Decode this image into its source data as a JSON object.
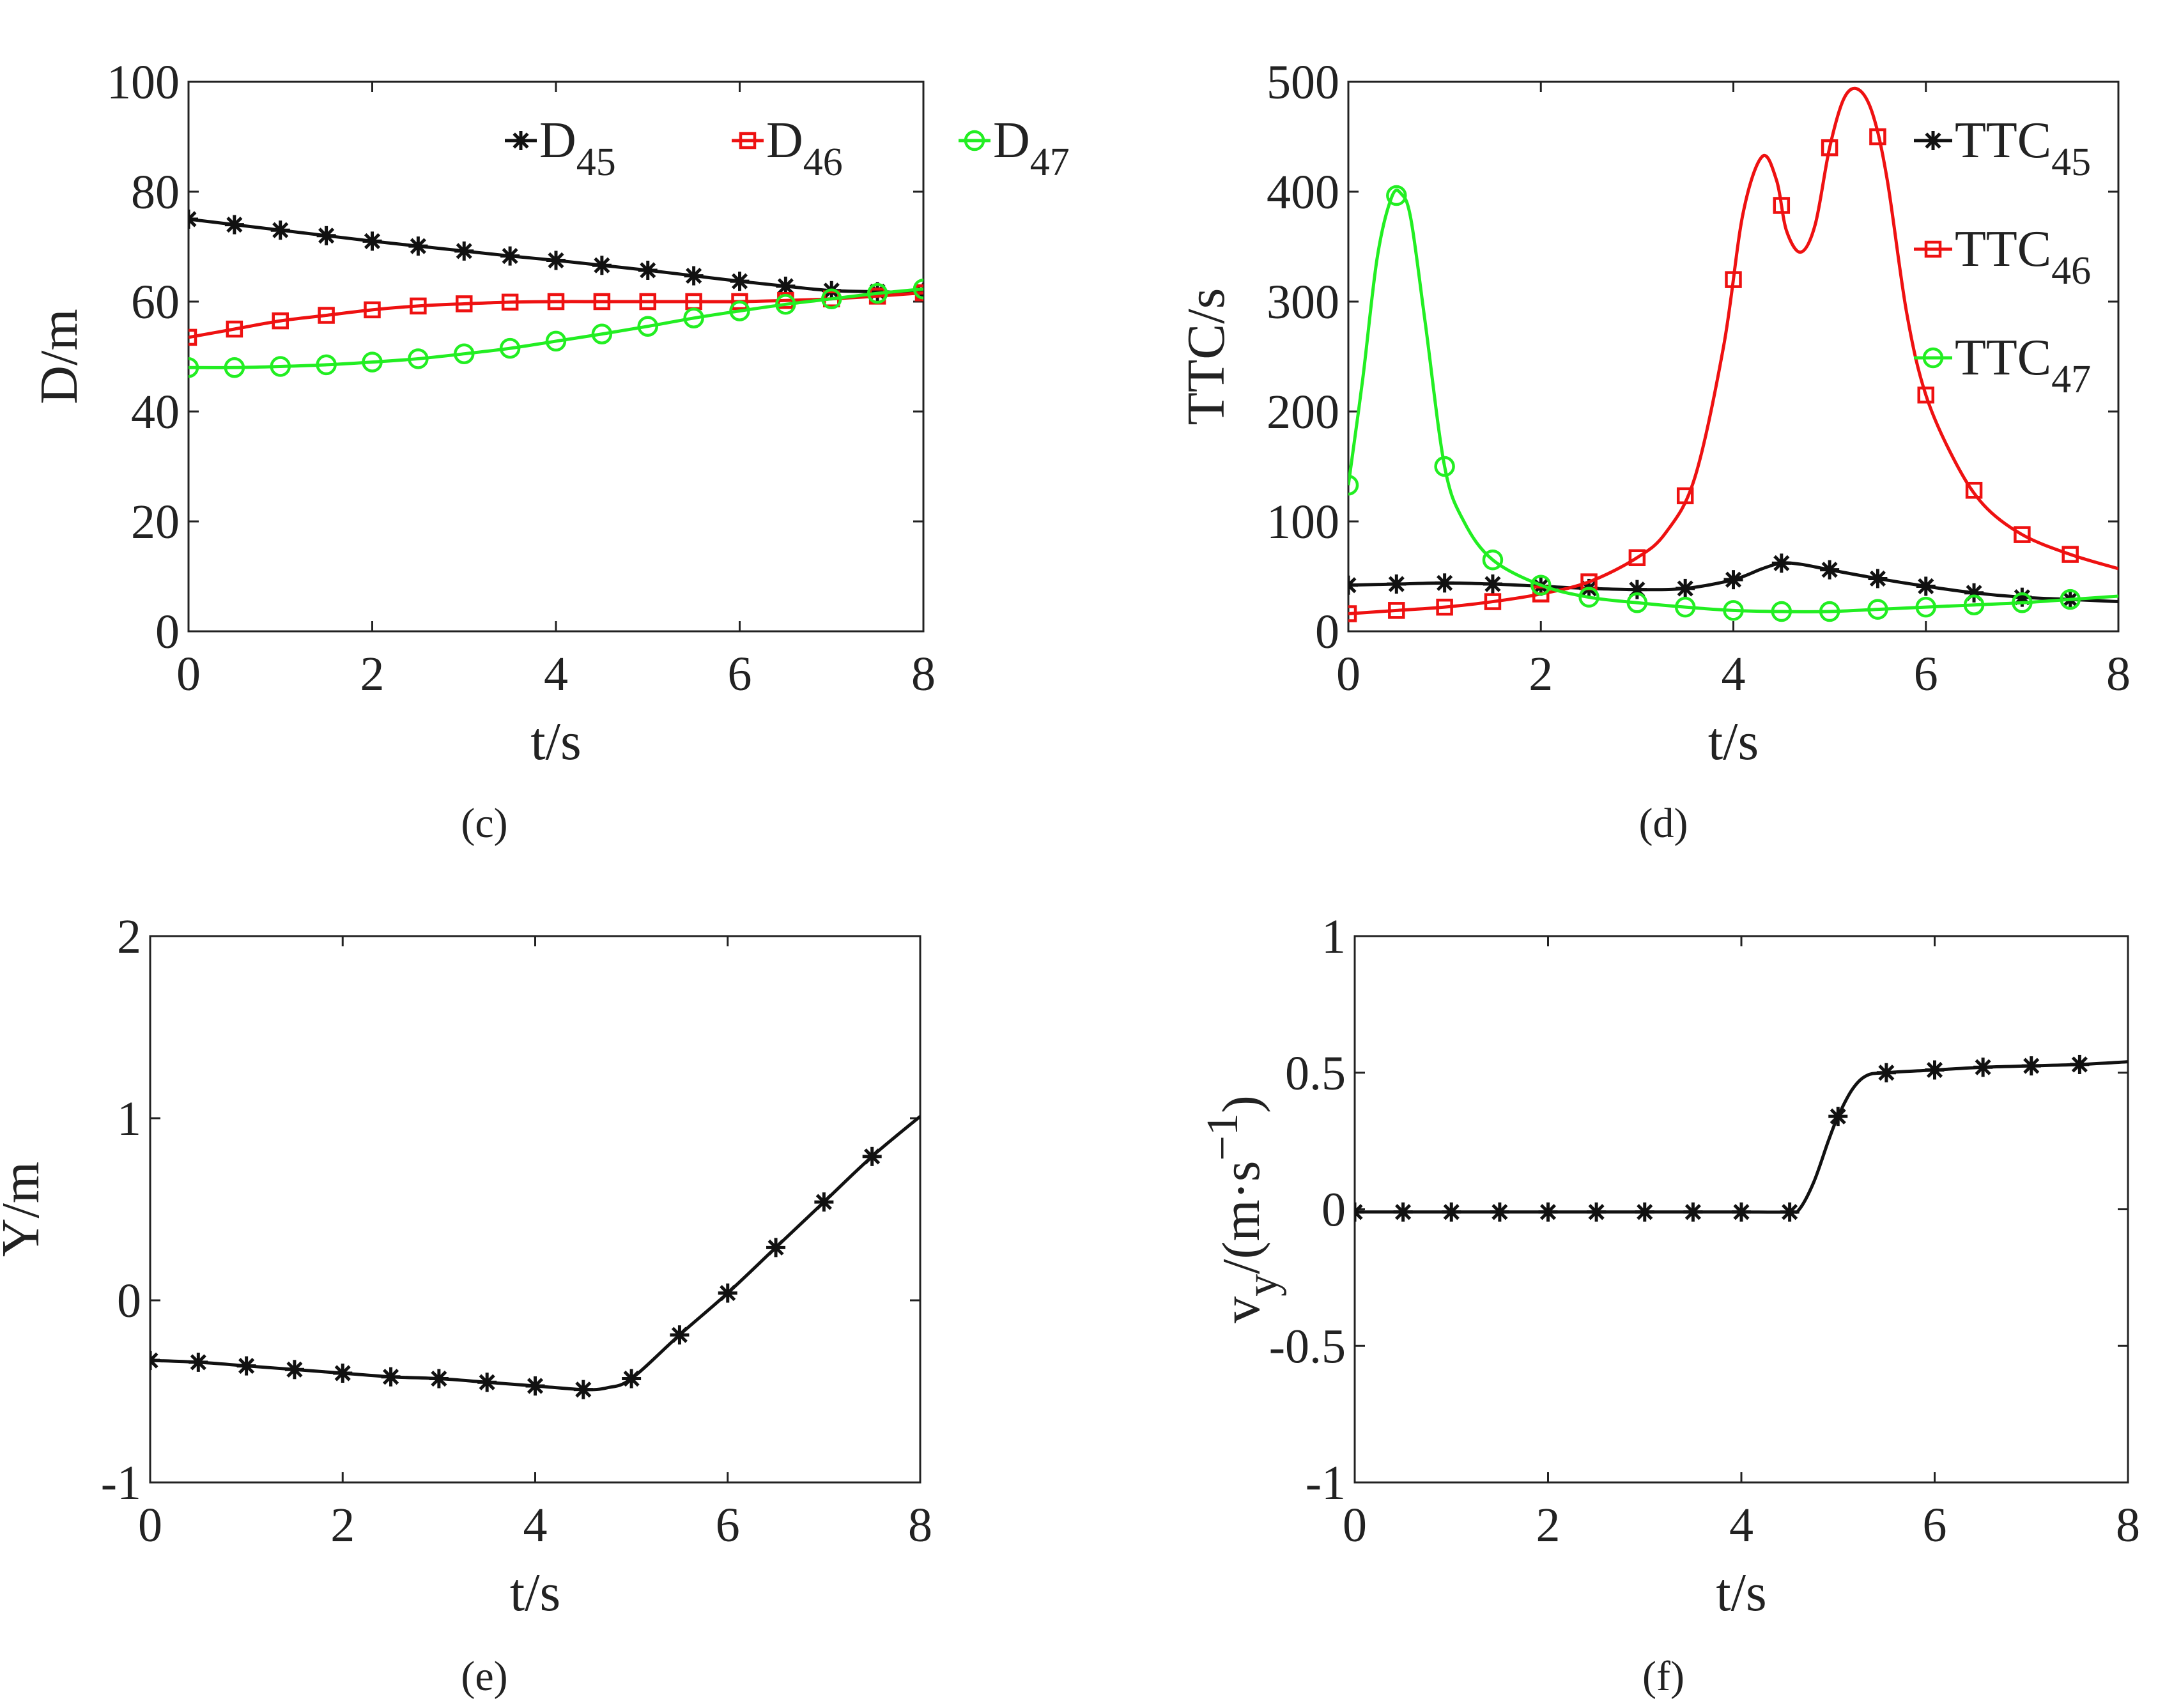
{
  "chart_data": [
    {
      "panel": "c",
      "caption": "(c)",
      "type": "line",
      "xlabel": "t/s",
      "ylabel": "D/m",
      "xlim": [
        0,
        8
      ],
      "ylim": [
        0,
        100
      ],
      "xticks": [
        "0",
        "2",
        "4",
        "6",
        "8"
      ],
      "yticks": [
        "0",
        "20",
        "40",
        "60",
        "80",
        "100"
      ],
      "legend_position": "top-right",
      "series": [
        {
          "name": "D",
          "sub": "45",
          "color": "#111111",
          "marker": "star",
          "x": [
            0,
            0.5,
            1,
            1.5,
            2,
            2.5,
            3,
            3.5,
            4,
            4.5,
            5,
            5.5,
            6,
            6.5,
            7,
            7.5,
            8
          ],
          "y": [
            75,
            74,
            73,
            72,
            71,
            70.1,
            69.2,
            68.3,
            67.5,
            66.6,
            65.7,
            64.7,
            63.7,
            62.8,
            62,
            61.8,
            61.6
          ]
        },
        {
          "name": "D",
          "sub": "46",
          "color": "#ee1111",
          "marker": "square",
          "x": [
            0,
            0.5,
            1,
            1.5,
            2,
            2.5,
            3,
            3.5,
            4,
            4.5,
            5,
            5.5,
            6,
            6.5,
            7,
            7.5,
            8
          ],
          "y": [
            53.5,
            55,
            56.5,
            57.5,
            58.5,
            59.2,
            59.6,
            59.9,
            60,
            60,
            60,
            60,
            60,
            60.2,
            60.5,
            61,
            61.6
          ]
        },
        {
          "name": "D",
          "sub": "47",
          "color": "#22ee22",
          "marker": "circle",
          "x": [
            0,
            0.5,
            1,
            1.5,
            2,
            2.5,
            3,
            3.5,
            4,
            4.5,
            5,
            5.5,
            6,
            6.5,
            7,
            7.5,
            8
          ],
          "y": [
            48,
            48,
            48.2,
            48.5,
            49,
            49.6,
            50.5,
            51.5,
            52.8,
            54.1,
            55.5,
            57,
            58.3,
            59.5,
            60.5,
            61.5,
            62.3
          ]
        }
      ]
    },
    {
      "panel": "d",
      "caption": "(d)",
      "type": "line",
      "xlabel": "t/s",
      "ylabel": "TTC/s",
      "xlim": [
        0,
        8
      ],
      "ylim": [
        0,
        500
      ],
      "xticks": [
        "0",
        "2",
        "4",
        "6",
        "8"
      ],
      "yticks": [
        "0",
        "100",
        "200",
        "300",
        "400",
        "500"
      ],
      "legend_position": "top-right",
      "series": [
        {
          "name": "TTC",
          "sub": "45",
          "color": "#111111",
          "marker": "star",
          "x": [
            0,
            0.5,
            1,
            1.5,
            2,
            2.5,
            3,
            3.5,
            4,
            4.3,
            4.5,
            4.7,
            5,
            5.5,
            6,
            6.5,
            7,
            7.5,
            8
          ],
          "y": [
            42,
            43,
            44,
            43,
            41,
            39,
            38,
            39,
            47,
            57,
            62,
            61,
            56,
            48,
            41,
            35,
            31,
            29,
            27
          ],
          "marker_x": [
            0,
            0.5,
            1,
            1.5,
            2,
            2.5,
            3,
            3.5,
            4,
            4.5,
            5,
            5.5,
            6,
            6.5,
            7,
            7.5
          ]
        },
        {
          "name": "TTC",
          "sub": "46",
          "color": "#ee1111",
          "marker": "square",
          "x": [
            0,
            0.5,
            1,
            1.5,
            2,
            2.5,
            3,
            3.3,
            3.6,
            3.9,
            4.1,
            4.3,
            4.45,
            4.55,
            4.7,
            4.85,
            5,
            5.15,
            5.3,
            5.45,
            5.6,
            5.8,
            6,
            6.3,
            6.6,
            7,
            7.5,
            8
          ],
          "y": [
            16,
            19,
            22,
            27,
            34,
            45,
            67,
            90,
            140,
            260,
            380,
            432,
            410,
            365,
            345,
            370,
            440,
            485,
            493,
            470,
            410,
            290,
            215,
            155,
            115,
            88,
            70,
            57
          ],
          "marker_x": [
            0,
            0.5,
            1,
            1.5,
            2,
            2.5,
            3,
            3.5,
            4,
            4.5,
            5,
            5.5,
            6,
            6.5,
            7,
            7.5
          ]
        },
        {
          "name": "TTC",
          "sub": "47",
          "color": "#22ee22",
          "marker": "circle",
          "x": [
            0,
            0.15,
            0.3,
            0.45,
            0.55,
            0.65,
            0.8,
            1,
            1.2,
            1.5,
            2,
            2.5,
            3,
            3.5,
            4,
            4.5,
            5,
            5.5,
            6,
            6.5,
            7,
            7.5,
            8
          ],
          "y": [
            133,
            230,
            340,
            395,
            398,
            375,
            280,
            150,
            100,
            65,
            42,
            31,
            26,
            22,
            19,
            18,
            18,
            20,
            22,
            24,
            26,
            29,
            32
          ],
          "marker_x": [
            0,
            0.5,
            1,
            1.5,
            2,
            2.5,
            3,
            3.5,
            4,
            4.5,
            5,
            5.5,
            6,
            6.5,
            7,
            7.5
          ]
        }
      ]
    },
    {
      "panel": "e",
      "caption": "(e)",
      "type": "line",
      "xlabel": "t/s",
      "ylabel": "Y/m",
      "xlim": [
        0,
        8
      ],
      "ylim": [
        -1,
        2
      ],
      "xticks": [
        "0",
        "2",
        "4",
        "6",
        "8"
      ],
      "yticks": [
        "-1",
        "0",
        "1",
        "2"
      ],
      "series": [
        {
          "name": "Y",
          "color": "#111111",
          "marker": "star",
          "x": [
            0,
            0.5,
            1,
            1.5,
            2,
            2.5,
            3,
            3.5,
            4,
            4.5,
            4.75,
            5,
            5.5,
            6,
            6.5,
            7,
            7.5,
            8
          ],
          "y": [
            -0.33,
            -0.34,
            -0.36,
            -0.38,
            -0.4,
            -0.42,
            -0.43,
            -0.45,
            -0.47,
            -0.49,
            -0.48,
            -0.43,
            -0.19,
            0.04,
            0.29,
            0.54,
            0.79,
            1.01
          ],
          "marker_x": [
            0,
            0.5,
            1,
            1.5,
            2,
            2.5,
            3,
            3.5,
            4,
            4.5,
            5,
            5.5,
            6,
            6.5,
            7,
            7.5
          ]
        }
      ]
    },
    {
      "panel": "f",
      "caption": "(f)",
      "type": "line",
      "xlabel": "t/s",
      "ylabel": "v",
      "ylabel_sub": "y",
      "ylabel_rest": "/(m·s",
      "ylabel_sup": "−1",
      "ylabel_close": ")",
      "xlim": [
        0,
        8
      ],
      "ylim": [
        -1,
        1
      ],
      "xticks": [
        "0",
        "2",
        "4",
        "6",
        "8"
      ],
      "yticks": [
        "-1",
        "-0.5",
        "0",
        "0.5",
        "1"
      ],
      "series": [
        {
          "name": "vy",
          "color": "#111111",
          "marker": "star",
          "x": [
            0,
            0.5,
            1,
            1.5,
            2,
            2.5,
            3,
            3.5,
            4,
            4.5,
            4.6,
            4.75,
            4.9,
            5,
            5.15,
            5.3,
            5.5,
            6,
            6.5,
            7,
            7.5,
            8
          ],
          "y": [
            -0.01,
            -0.01,
            -0.01,
            -0.01,
            -0.01,
            -0.01,
            -0.01,
            -0.01,
            -0.01,
            -0.01,
            0,
            0.1,
            0.25,
            0.34,
            0.44,
            0.49,
            0.5,
            0.51,
            0.52,
            0.525,
            0.53,
            0.54
          ],
          "marker_x": [
            0,
            0.5,
            1,
            1.5,
            2,
            2.5,
            3,
            3.5,
            4,
            4.5,
            5,
            5.5,
            6,
            6.5,
            7,
            7.5
          ]
        }
      ]
    }
  ]
}
